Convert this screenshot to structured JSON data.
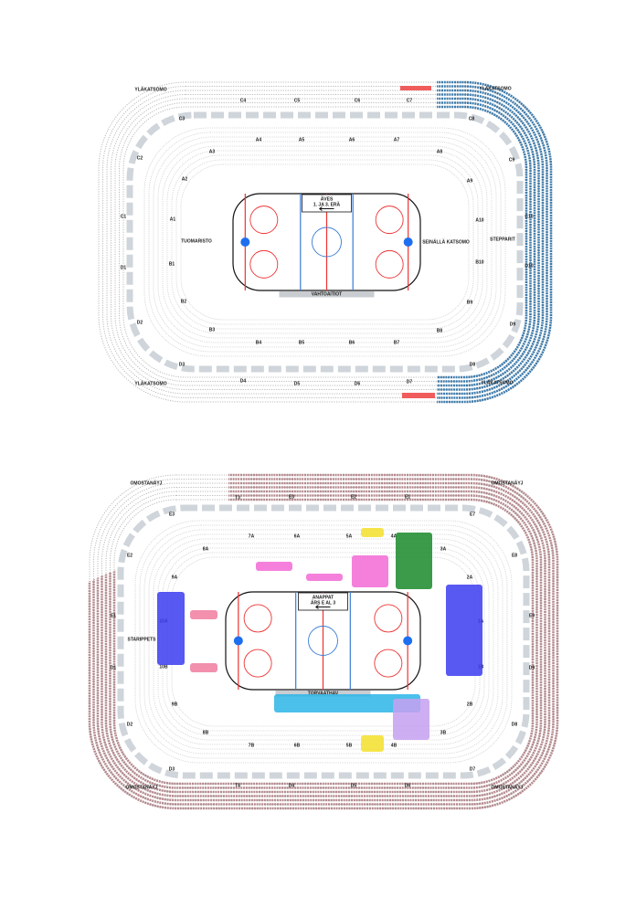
{
  "maps": [
    {
      "labels": [
        "YLÄKATSOMO",
        "YLÄKATSOMO",
        "YLÄKATSOMO",
        "YLÄKATSOMO",
        "C4",
        "C5",
        "C6",
        "C7",
        "C3",
        "C8",
        "C2",
        "C9",
        "C1",
        "C10",
        "D1",
        "D10",
        "D2",
        "D9",
        "D3",
        "D8",
        "D4",
        "D5",
        "D6",
        "D7",
        "A4",
        "A5",
        "A6",
        "A7",
        "A3",
        "A8",
        "A2",
        "A9",
        "A1",
        "A10",
        "B1",
        "B10",
        "B2",
        "B9",
        "B3",
        "B8",
        "B4",
        "B5",
        "B6",
        "B7",
        "TUOMARISTO",
        "SEINÄLLÄ KATSOMO",
        "STEPPARIT"
      ],
      "bench_box": [
        "ÄVES",
        "1. JA 3. ERÄ"
      ],
      "boards": "VAHTOAITIOT"
    },
    {
      "labels": [
        "OMOSTANÄYJ",
        "OMOSTANÄYJ",
        "OMOSTANÄYJ",
        "OMOSTANÄYJ",
        "T3",
        "E3",
        "E2",
        "E1",
        "E3",
        "E7",
        "E2",
        "E8",
        "E1",
        "E9",
        "D1",
        "D9",
        "D2",
        "D8",
        "D3",
        "D7",
        "T4",
        "D4",
        "D5",
        "D6",
        "7A",
        "6A",
        "5A",
        "4A",
        "8A",
        "3A",
        "9A",
        "2A",
        "10A",
        "1A",
        "10B",
        "1B",
        "9B",
        "2B",
        "8B",
        "3B",
        "7B",
        "6B",
        "5B",
        "4B",
        "STARIPPETS"
      ],
      "bench_box": [
        "ANAPPAT",
        "ÄRS E AL 3"
      ],
      "boards": "TORVAATHAV"
    }
  ]
}
